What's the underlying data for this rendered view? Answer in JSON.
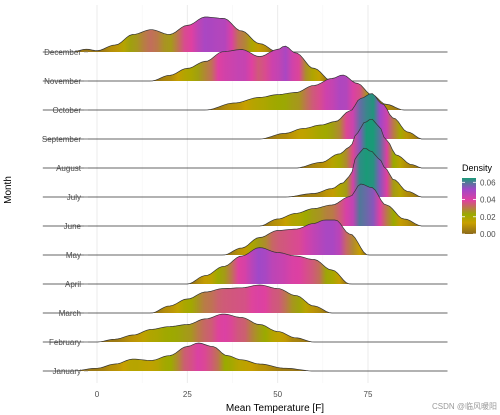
{
  "chart_data": {
    "type": "ridgeline",
    "xlabel": "Mean Temperature [F]",
    "ylabel": "Month",
    "xlim": [
      -15,
      97
    ],
    "x_ticks": [
      0,
      25,
      50,
      75
    ],
    "grid": true,
    "legend_position": "right",
    "legend": {
      "title": "Density",
      "ticks": [
        0.06,
        0.04,
        0.02,
        0.0
      ],
      "tick_labels": [
        "0.06",
        "0.04",
        "0.02",
        "0.00"
      ],
      "range": [
        0,
        0.065
      ],
      "colors": [
        "#8c6a1c",
        "#c8a000",
        "#9aaa00",
        "#e040a0",
        "#a048c8",
        "#1a9a78"
      ]
    },
    "series": [
      {
        "name": "January",
        "x": [
          -7,
          0,
          5,
          10,
          15,
          20,
          25,
          28,
          32,
          36,
          40,
          45,
          52,
          60
        ],
        "density": [
          0,
          0.004,
          0.01,
          0.017,
          0.015,
          0.022,
          0.035,
          0.04,
          0.035,
          0.022,
          0.016,
          0.01,
          0.004,
          0
        ]
      },
      {
        "name": "February",
        "x": [
          0,
          5,
          10,
          15,
          20,
          25,
          30,
          35,
          40,
          45,
          50,
          55,
          60
        ],
        "density": [
          0,
          0.004,
          0.01,
          0.018,
          0.022,
          0.025,
          0.033,
          0.04,
          0.035,
          0.025,
          0.015,
          0.006,
          0
        ]
      },
      {
        "name": "March",
        "x": [
          15,
          20,
          25,
          30,
          35,
          40,
          45,
          50,
          55,
          60,
          65
        ],
        "density": [
          0,
          0.01,
          0.02,
          0.03,
          0.035,
          0.036,
          0.04,
          0.035,
          0.025,
          0.01,
          0
        ]
      },
      {
        "name": "April",
        "x": [
          25,
          30,
          35,
          40,
          45,
          50,
          55,
          60,
          65,
          70
        ],
        "density": [
          0,
          0.012,
          0.025,
          0.04,
          0.052,
          0.045,
          0.04,
          0.035,
          0.02,
          0
        ]
      },
      {
        "name": "May",
        "x": [
          35,
          40,
          45,
          50,
          55,
          60,
          63,
          66,
          70,
          75
        ],
        "density": [
          0,
          0.01,
          0.025,
          0.035,
          0.037,
          0.045,
          0.05,
          0.05,
          0.03,
          0
        ]
      },
      {
        "name": "June",
        "x": [
          45,
          50,
          55,
          60,
          65,
          70,
          73,
          76,
          80,
          85,
          90
        ],
        "density": [
          0,
          0.01,
          0.018,
          0.025,
          0.03,
          0.042,
          0.06,
          0.055,
          0.03,
          0.01,
          0
        ]
      },
      {
        "name": "July",
        "x": [
          52,
          60,
          65,
          68,
          70,
          72,
          74,
          76,
          78,
          80,
          82,
          86,
          90
        ],
        "density": [
          0,
          0.005,
          0.012,
          0.02,
          0.03,
          0.06,
          0.07,
          0.065,
          0.055,
          0.04,
          0.025,
          0.008,
          0
        ]
      },
      {
        "name": "August",
        "x": [
          55,
          62,
          67,
          70,
          72,
          74,
          76,
          78,
          80,
          83,
          87,
          90
        ],
        "density": [
          0,
          0.008,
          0.02,
          0.03,
          0.05,
          0.065,
          0.07,
          0.06,
          0.04,
          0.018,
          0.005,
          0
        ]
      },
      {
        "name": "September",
        "x": [
          45,
          52,
          57,
          62,
          66,
          70,
          73,
          76,
          79,
          82,
          86,
          90
        ],
        "density": [
          0,
          0.008,
          0.015,
          0.02,
          0.025,
          0.04,
          0.058,
          0.065,
          0.05,
          0.03,
          0.01,
          0
        ]
      },
      {
        "name": "October",
        "x": [
          30,
          38,
          45,
          50,
          55,
          60,
          65,
          68,
          72,
          76,
          80,
          85
        ],
        "density": [
          0,
          0.01,
          0.018,
          0.022,
          0.025,
          0.035,
          0.045,
          0.05,
          0.038,
          0.022,
          0.008,
          0
        ]
      },
      {
        "name": "November",
        "x": [
          15,
          20,
          25,
          30,
          35,
          40,
          45,
          50,
          52,
          55,
          60,
          65
        ],
        "density": [
          0,
          0.008,
          0.018,
          0.028,
          0.042,
          0.045,
          0.035,
          0.045,
          0.05,
          0.04,
          0.018,
          0
        ]
      },
      {
        "name": "December",
        "x": [
          -7,
          -3,
          0,
          5,
          10,
          15,
          20,
          25,
          30,
          35,
          40,
          45,
          50
        ],
        "density": [
          0,
          0.004,
          0.002,
          0.01,
          0.025,
          0.032,
          0.025,
          0.038,
          0.05,
          0.048,
          0.03,
          0.012,
          0
        ]
      }
    ]
  },
  "watermark": "CSDN @临风暖阳"
}
